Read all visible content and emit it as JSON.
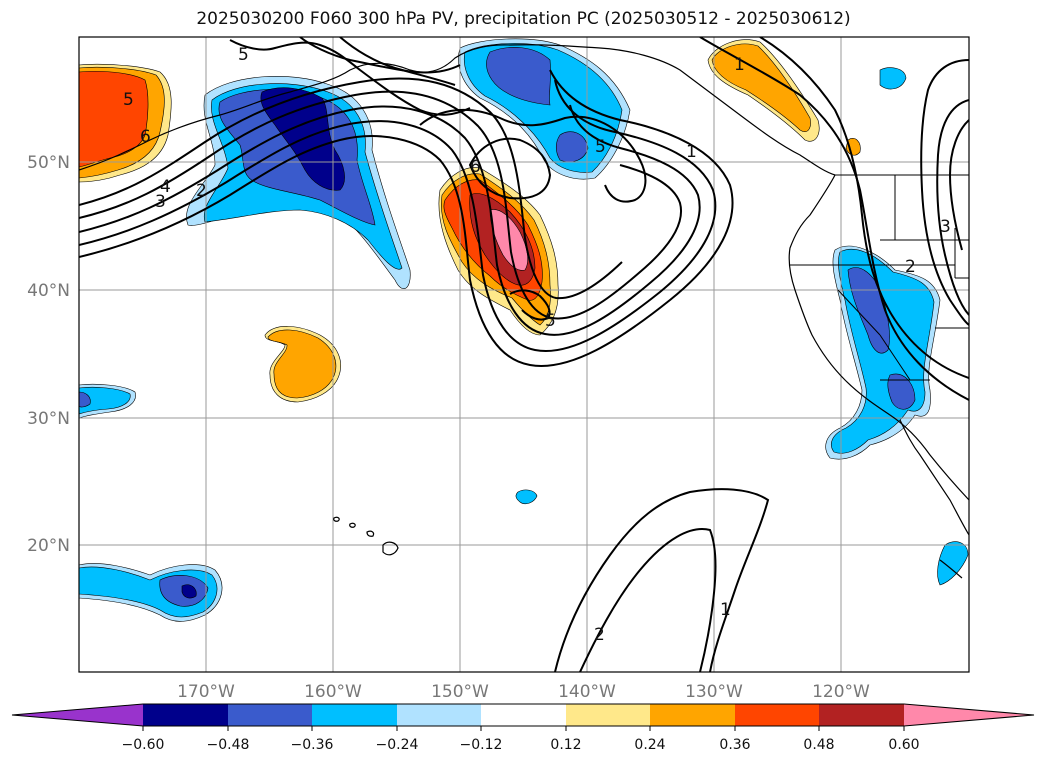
{
  "title": "2025030200 F060 300 hPa PV, precipitation PC (2025030512 - 2025030612)",
  "map": {
    "lon_labels": [
      "170°W",
      "160°W",
      "150°W",
      "140°W",
      "130°W",
      "120°W"
    ],
    "lat_labels": [
      "50°N",
      "40°N",
      "30°N",
      "20°N"
    ],
    "contour_labels": [
      "5",
      "4",
      "3",
      "2",
      "6",
      "5",
      "6",
      "5",
      "1",
      "1",
      "2",
      "1",
      "2",
      "3",
      "5"
    ]
  },
  "colorbar": {
    "ticks": [
      "−0.60",
      "−0.48",
      "−0.36",
      "−0.24",
      "−0.12",
      "0.12",
      "0.24",
      "0.36",
      "0.48",
      "0.60"
    ],
    "colors": [
      "#9933cc",
      "#00008b",
      "#3a5bcc",
      "#00bfff",
      "#b0e2ff",
      "#ffffff",
      "#ffe88a",
      "#ffa500",
      "#ff4500",
      "#b22222",
      "#ff88aa",
      "#ff88aa"
    ]
  },
  "palette": {
    "n4": "#00008b",
    "n3": "#3a5bcc",
    "n2": "#00bfff",
    "n1": "#b0e2ff",
    "p1": "#ffe88a",
    "p2": "#ffa500",
    "p3": "#ff4500",
    "p4": "#b22222",
    "p5": "#ff88aa"
  }
}
